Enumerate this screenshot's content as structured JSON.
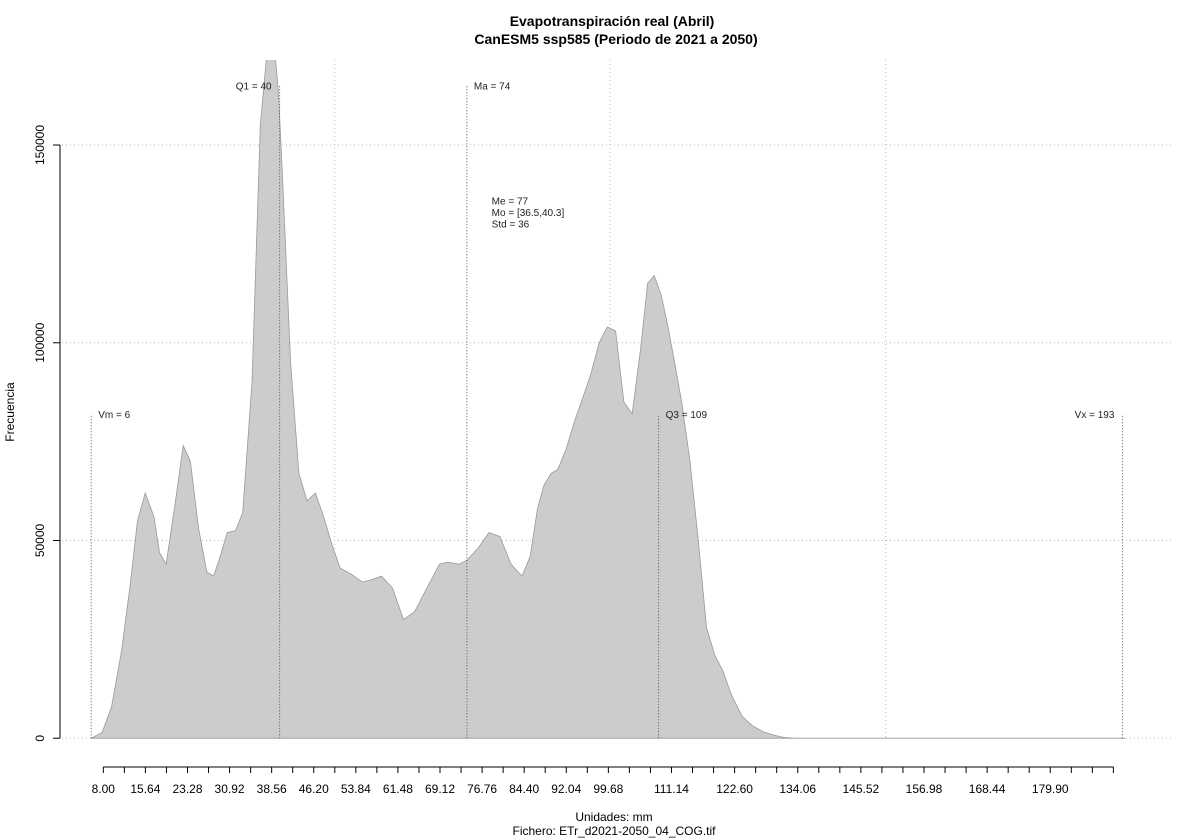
{
  "chart_data": {
    "type": "area",
    "title": "Evapotranspiración real (Abril)",
    "subtitle": "CanESM5 ssp585 (Periodo de 2021 a 2050)",
    "xlabel": "Unidades: mm",
    "file_label": "Fichero: ETr_d2021-2050_04_COG.tif",
    "ylabel": "Frecuencia",
    "fill_color": "#cccccc",
    "line_color": "#999999",
    "xlim": [
      0.5,
      202
    ],
    "ylim": [
      -5000,
      171500
    ],
    "grid": true,
    "x_grid": [
      50,
      100,
      150
    ],
    "y_ticks": [
      0,
      50000,
      100000,
      150000
    ],
    "y_tick_labels": [
      "0",
      "50000",
      "100000",
      "150000"
    ],
    "x_minor_ticks": [
      8.0,
      11.82,
      15.64,
      19.46,
      23.28,
      27.1,
      30.92,
      34.74,
      38.56,
      42.38,
      46.2,
      50.02,
      53.84,
      57.66,
      61.48,
      65.3,
      69.12,
      72.94,
      76.76,
      80.58,
      84.4,
      88.22,
      92.04,
      95.86,
      99.68,
      103.5,
      107.32,
      111.14,
      114.96,
      118.78,
      122.6,
      126.42,
      130.24,
      134.06,
      137.88,
      141.7,
      145.52,
      149.34,
      153.16,
      156.98,
      160.8,
      164.62,
      168.44,
      172.26,
      176.08,
      179.9,
      183.72,
      187.54,
      191.36
    ],
    "x_tick_labels": [
      "8.00",
      "15.64",
      "23.28",
      "30.92",
      "38.56",
      "46.20",
      "53.84",
      "61.48",
      "69.12",
      "76.76",
      "84.40",
      "92.04",
      "99.68",
      "111.14",
      "122.60",
      "134.06",
      "145.52",
      "156.98",
      "168.44",
      "179.90"
    ],
    "x": [
      5.8,
      7.8,
      9.5,
      11.3,
      12.8,
      14.2,
      15.6,
      17.2,
      18.2,
      19.4,
      21.0,
      22.5,
      23.8,
      25.3,
      26.8,
      28.0,
      29.0,
      30.5,
      32.0,
      33.3,
      35.0,
      36.5,
      38.0,
      39.0,
      39.8,
      40.5,
      42.0,
      43.5,
      45.0,
      46.5,
      48.0,
      49.5,
      51.0,
      53.0,
      55.0,
      56.5,
      58.5,
      60.5,
      62.5,
      64.5,
      66.0,
      67.5,
      69.0,
      70.5,
      72.5,
      74.0,
      76.0,
      78.0,
      80.0,
      82.0,
      84.0,
      85.5,
      86.8,
      88.0,
      89.3,
      90.5,
      92.0,
      93.5,
      95.0,
      96.5,
      98.0,
      99.5,
      101.0,
      102.5,
      104.0,
      105.5,
      106.8,
      108.0,
      109.3,
      110.5,
      111.7,
      113.0,
      114.5,
      116.0,
      117.5,
      119.0,
      120.5,
      122.0,
      124.0,
      126.0,
      128.0,
      130.0,
      131.5,
      133.5,
      135.5,
      137.0,
      138.5,
      140.5,
      143.0,
      146.0,
      150.0,
      160.0,
      175.0,
      190.0,
      193.5
    ],
    "y": [
      0,
      1500,
      8000,
      22000,
      38000,
      55000,
      62000,
      56000,
      47000,
      44000,
      59000,
      74000,
      70000,
      53000,
      42000,
      41000,
      45000,
      52000,
      52500,
      57000,
      90000,
      155000,
      178000,
      176000,
      163000,
      143000,
      95000,
      67000,
      60000,
      62000,
      56000,
      49000,
      43000,
      41500,
      39500,
      40000,
      41000,
      38000,
      30000,
      32000,
      36000,
      40000,
      44000,
      44500,
      44000,
      45000,
      48000,
      52000,
      51000,
      44000,
      41000,
      46000,
      58000,
      64000,
      67000,
      68000,
      73000,
      80000,
      86000,
      92000,
      100000,
      104000,
      103000,
      85000,
      82000,
      98000,
      115000,
      117000,
      112000,
      104000,
      95000,
      85000,
      70000,
      50000,
      28000,
      21000,
      17000,
      11000,
      5500,
      3000,
      1500,
      700,
      200,
      0,
      0,
      0,
      0,
      0,
      0,
      0,
      0,
      0,
      0,
      0,
      0
    ],
    "markers": [
      {
        "label": "Vm = 6",
        "x": 5.8,
        "y_top": 82000,
        "anchor": "start"
      },
      {
        "label": "Q1 = 40",
        "x": 40.0,
        "y_top": 165000,
        "anchor": "end"
      },
      {
        "label": "Ma = 74",
        "x": 74.0,
        "y_top": 165000,
        "anchor": "start"
      },
      {
        "label": "Q3 = 109",
        "x": 108.8,
        "y_top": 82000,
        "anchor": "start"
      },
      {
        "label": "Vx = 193",
        "x": 193.0,
        "y_top": 82000,
        "anchor": "end"
      }
    ],
    "stats": {
      "x": 78.5,
      "y": 135000,
      "lines": [
        "Me = 77",
        "Mo = [36.5,40.3]",
        "Std = 36"
      ]
    }
  }
}
